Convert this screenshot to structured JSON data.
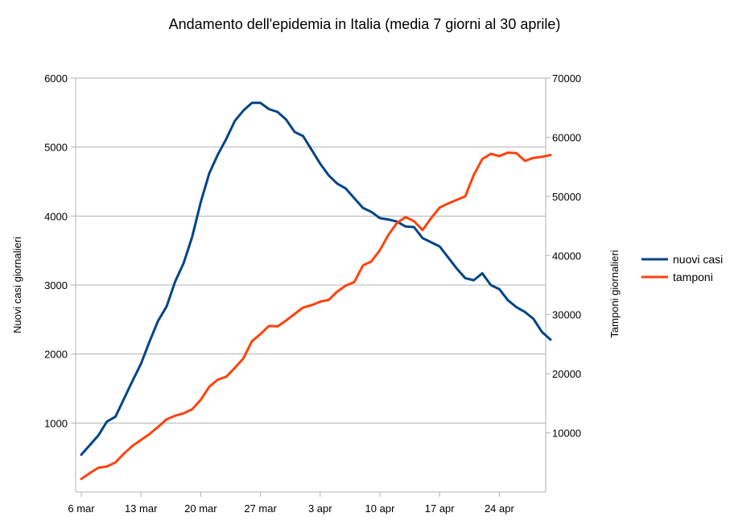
{
  "chart_data": {
    "type": "line",
    "title": "Andamento dell'epidemia in Italia (media 7 giorni al 30 aprile)",
    "ylabel": "Nuovi casi giornalieri",
    "y2label": "Tamponi giornalieri",
    "xlabel": "",
    "x_tick_labels": [
      "6 mar",
      "13 mar",
      "20 mar",
      "27 mar",
      "3 apr",
      "10 apr",
      "17 apr",
      "24 apr"
    ],
    "y_ticks": [
      "1000",
      "2000",
      "3000",
      "4000",
      "5000",
      "6000"
    ],
    "y2_ticks": [
      "10000",
      "20000",
      "30000",
      "40000",
      "50000",
      "60000",
      "70000"
    ],
    "ylim": [
      0,
      6000
    ],
    "y2lim": [
      0,
      70000
    ],
    "grid": true,
    "legend_position": "right",
    "series": [
      {
        "name": "nuovi casi",
        "axis": "left",
        "color": "#004586",
        "values": [
          540,
          680,
          820,
          1020,
          1090,
          1350,
          1610,
          1860,
          2180,
          2480,
          2690,
          3050,
          3320,
          3700,
          4200,
          4620,
          4890,
          5120,
          5380,
          5530,
          5640,
          5640,
          5550,
          5510,
          5400,
          5220,
          5160,
          4960,
          4760,
          4590,
          4470,
          4400,
          4260,
          4120,
          4060,
          3970,
          3950,
          3920,
          3850,
          3840,
          3680,
          3620,
          3560,
          3400,
          3240,
          3100,
          3070,
          3170,
          3000,
          2940,
          2780,
          2680,
          2610,
          2510,
          2320,
          2210
        ]
      },
      {
        "name": "tamponi",
        "axis": "right",
        "color": "#ff420e",
        "values": [
          2200,
          3200,
          4100,
          4300,
          5000,
          6500,
          7800,
          8800,
          9800,
          11000,
          12300,
          12900,
          13300,
          14000,
          15600,
          17800,
          19000,
          19500,
          21000,
          22600,
          25500,
          26700,
          28100,
          28000,
          29000,
          30100,
          31200,
          31600,
          32200,
          32500,
          33900,
          34900,
          35500,
          38300,
          39000,
          40900,
          43500,
          45500,
          46500,
          45800,
          44300,
          46300,
          48100,
          48800,
          49400,
          50000,
          53600,
          56300,
          57200,
          56800,
          57400,
          57300,
          56000,
          56500,
          56700,
          57000
        ]
      }
    ]
  }
}
